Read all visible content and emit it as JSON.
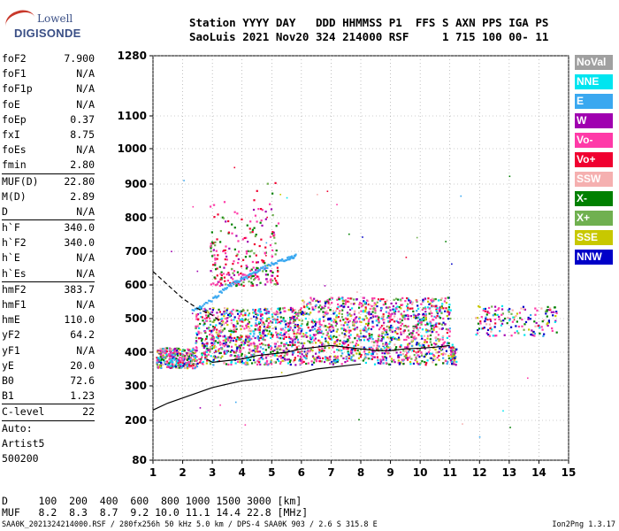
{
  "logo": {
    "line1": "Lowell",
    "line2": "DIGISONDE"
  },
  "header": {
    "line1": "Station YYYY DAY   DDD HHMMSS P1  FFS S AXN PPS IGA PS",
    "line2": "SaoLuis 2021 Nov20 324 214000 RSF     1 715 100 00- 11"
  },
  "params": [
    {
      "k": "foF2",
      "v": "7.900"
    },
    {
      "k": "foF1",
      "v": "N/A"
    },
    {
      "k": "foF1p",
      "v": "N/A"
    },
    {
      "k": "foE",
      "v": "N/A"
    },
    {
      "k": "foEp",
      "v": "0.37"
    },
    {
      "k": "fxI",
      "v": "8.75"
    },
    {
      "k": "foEs",
      "v": "N/A"
    },
    {
      "k": "fmin",
      "v": "2.80"
    },
    {
      "k": "MUF(D)",
      "v": "22.80"
    },
    {
      "k": "M(D)",
      "v": "2.89"
    },
    {
      "k": "D",
      "v": "N/A"
    },
    {
      "k": "h`F",
      "v": "340.0"
    },
    {
      "k": "h`F2",
      "v": "340.0"
    },
    {
      "k": "h`E",
      "v": "N/A"
    },
    {
      "k": "h`Es",
      "v": "N/A"
    },
    {
      "k": "hmF2",
      "v": "383.7"
    },
    {
      "k": "hmF1",
      "v": "N/A"
    },
    {
      "k": "hmE",
      "v": "110.0"
    },
    {
      "k": "yF2",
      "v": "64.2"
    },
    {
      "k": "yF1",
      "v": "N/A"
    },
    {
      "k": "yE",
      "v": "20.0"
    },
    {
      "k": "B0",
      "v": "72.6"
    },
    {
      "k": "B1",
      "v": "1.23"
    },
    {
      "k": "C-level",
      "v": "22"
    },
    {
      "k": "Auto:",
      "v": ""
    },
    {
      "k": "Artist5",
      "v": ""
    },
    {
      "k": "500200",
      "v": ""
    }
  ],
  "legend": [
    {
      "label": "NoVal",
      "color": "#a0a0a0"
    },
    {
      "label": "NNE",
      "color": "#00e5f0"
    },
    {
      "label": "E",
      "color": "#3aa8f0"
    },
    {
      "label": "W",
      "color": "#a000b0"
    },
    {
      "label": "Vo-",
      "color": "#ff3aa8"
    },
    {
      "label": "Vo+",
      "color": "#f00030"
    },
    {
      "label": "SSW",
      "color": "#f5b0b0"
    },
    {
      "label": "X-",
      "color": "#008000"
    },
    {
      "label": "X+",
      "color": "#70b050"
    },
    {
      "label": "SSE",
      "color": "#c8c800"
    },
    {
      "label": "NNW",
      "color": "#0000c8"
    }
  ],
  "footer": {
    "line1": "D     100  200  400  600  800 1000 1500 3000 [km]",
    "line2": "MUF   8.2  8.3  8.7  9.2 10.0 11.1 14.4 22.8 [MHz]",
    "bottom": "SAA0K_2021324214000.RSF / 280fx256h 50 kHz 5.0 km / DPS-4 SAA0K 903 / 2.6 S 315.8 E",
    "version": "Ion2Png 1.3.17"
  },
  "chart_data": {
    "type": "scatter",
    "x_ticks": [
      "1",
      "2",
      "3",
      "4",
      "5",
      "6",
      "7",
      "8",
      "9",
      "10",
      "11",
      "12",
      "13",
      "14",
      "15"
    ],
    "y_ticks": [
      "1280",
      "1100",
      "1000",
      "900",
      "800",
      "700",
      "600",
      "500",
      "400",
      "300",
      "200",
      "80"
    ],
    "xlim": [
      1,
      15
    ],
    "ylim": [
      80,
      1280
    ],
    "grid": true,
    "seeds": {
      "dense": 1400
    },
    "series": [
      {
        "name": "F2 trace",
        "x": [
          2.8,
          3.0,
          3.5,
          4.0,
          4.5,
          5.0,
          5.5,
          6.0,
          6.5,
          7.0,
          7.5,
          8.0,
          8.5,
          9.0,
          9.5,
          10.0,
          10.5,
          11.0
        ],
        "y": [
          380,
          370,
          375,
          380,
          390,
          395,
          400,
          410,
          415,
          420,
          415,
          410,
          405,
          405,
          410,
          412,
          415,
          420
        ]
      },
      {
        "name": "E region",
        "x": [
          1.0,
          1.5,
          2.0,
          2.5,
          3.0,
          3.5,
          4.0,
          4.5,
          5.0,
          5.5,
          6.0,
          6.5,
          7.0,
          7.5,
          8.0
        ],
        "y": [
          230,
          250,
          265,
          280,
          295,
          305,
          315,
          320,
          325,
          330,
          340,
          350,
          355,
          360,
          365
        ]
      },
      {
        "name": "Profile dashed",
        "x": [
          1.0,
          1.5,
          2.0,
          2.5,
          3.0,
          3.3
        ],
        "y": [
          640,
          600,
          560,
          530,
          510,
          490
        ]
      },
      {
        "name": "Oblique streak",
        "x": [
          2.3,
          3.0,
          3.5,
          4.0,
          4.5,
          5.0,
          5.5,
          5.8
        ],
        "y": [
          525,
          560,
          600,
          620,
          645,
          665,
          680,
          690
        ]
      }
    ]
  }
}
